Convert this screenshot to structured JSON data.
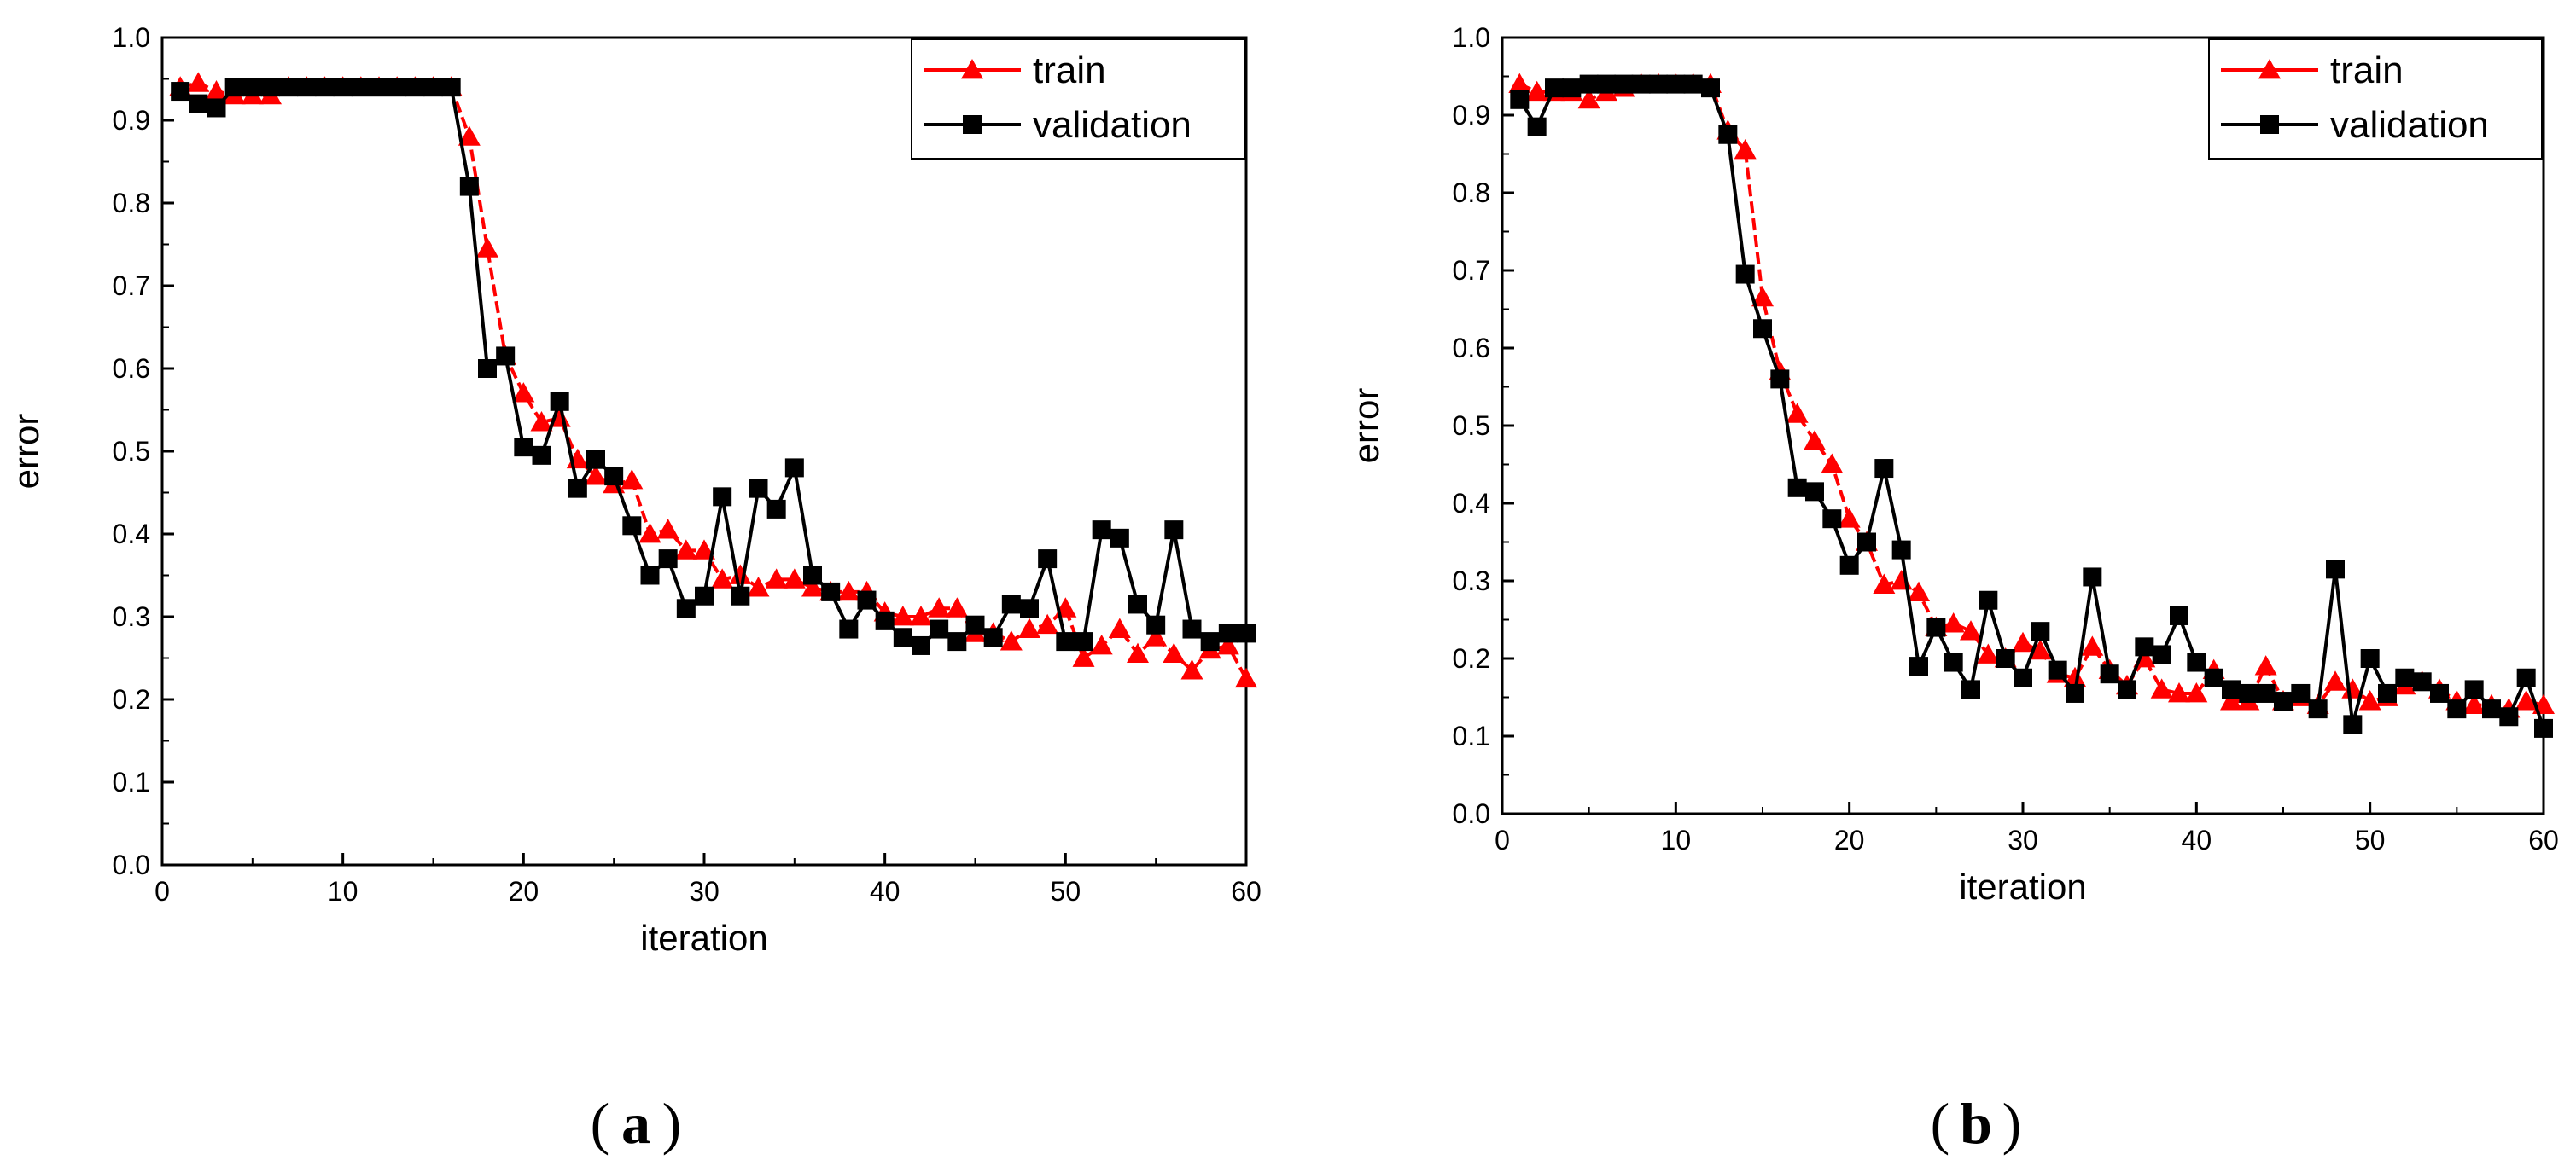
{
  "chart_data": [
    {
      "type": "line",
      "panel_label": "a",
      "xlabel": "iteration",
      "ylabel": "error",
      "xlim": [
        0,
        60
      ],
      "ylim": [
        0.0,
        1.0
      ],
      "xticks": [
        "0",
        "10",
        "20",
        "30",
        "40",
        "50",
        "60"
      ],
      "yticks": [
        "0.0",
        "0.1",
        "0.2",
        "0.3",
        "0.4",
        "0.5",
        "0.6",
        "0.7",
        "0.8",
        "0.9",
        "1.0"
      ],
      "legend_position": "top-right",
      "series": [
        {
          "name": "train",
          "color": "#ff0000",
          "marker": "triangle",
          "x": [
            1,
            2,
            3,
            4,
            5,
            6,
            7,
            8,
            9,
            10,
            11,
            12,
            13,
            14,
            15,
            16,
            17,
            18,
            19,
            20,
            21,
            22,
            23,
            24,
            25,
            26,
            27,
            28,
            29,
            30,
            31,
            32,
            33,
            34,
            35,
            36,
            37,
            38,
            39,
            40,
            41,
            42,
            43,
            44,
            45,
            46,
            47,
            48,
            49,
            50,
            51,
            52,
            53,
            54,
            55,
            56,
            57,
            58,
            59,
            60
          ],
          "values": [
            0.94,
            0.945,
            0.935,
            0.93,
            0.93,
            0.93,
            0.94,
            0.94,
            0.94,
            0.94,
            0.94,
            0.94,
            0.94,
            0.94,
            0.94,
            0.94,
            0.88,
            0.745,
            0.615,
            0.57,
            0.535,
            0.54,
            0.49,
            0.47,
            0.46,
            0.465,
            0.4,
            0.405,
            0.38,
            0.38,
            0.345,
            0.35,
            0.335,
            0.345,
            0.345,
            0.335,
            0.33,
            0.33,
            0.33,
            0.305,
            0.3,
            0.3,
            0.31,
            0.31,
            0.28,
            0.28,
            0.27,
            0.285,
            0.29,
            0.31,
            0.25,
            0.265,
            0.285,
            0.255,
            0.275,
            0.255,
            0.235,
            0.26,
            0.265,
            0.225
          ]
        },
        {
          "name": "validation",
          "color": "#000000",
          "marker": "square",
          "x": [
            1,
            2,
            3,
            4,
            5,
            6,
            7,
            8,
            9,
            10,
            11,
            12,
            13,
            14,
            15,
            16,
            17,
            18,
            19,
            20,
            21,
            22,
            23,
            24,
            25,
            26,
            27,
            28,
            29,
            30,
            31,
            32,
            33,
            34,
            35,
            36,
            37,
            38,
            39,
            40,
            41,
            42,
            43,
            44,
            45,
            46,
            47,
            48,
            49,
            50,
            51,
            52,
            53,
            54,
            55,
            56,
            57,
            58,
            59,
            60
          ],
          "values": [
            0.935,
            0.92,
            0.915,
            0.94,
            0.94,
            0.94,
            0.94,
            0.94,
            0.94,
            0.94,
            0.94,
            0.94,
            0.94,
            0.94,
            0.94,
            0.94,
            0.82,
            0.6,
            0.615,
            0.505,
            0.495,
            0.56,
            0.455,
            0.49,
            0.47,
            0.41,
            0.35,
            0.37,
            0.31,
            0.325,
            0.445,
            0.325,
            0.455,
            0.43,
            0.48,
            0.35,
            0.33,
            0.285,
            0.32,
            0.295,
            0.275,
            0.265,
            0.285,
            0.27,
            0.29,
            0.275,
            0.315,
            0.31,
            0.37,
            0.27,
            0.27,
            0.405,
            0.395,
            0.315,
            0.29,
            0.405,
            0.285,
            0.27,
            0.28,
            0.28
          ]
        }
      ]
    },
    {
      "type": "line",
      "panel_label": "b",
      "xlabel": "iteration",
      "ylabel": "error",
      "xlim": [
        0,
        60
      ],
      "ylim": [
        0.0,
        1.0
      ],
      "xticks": [
        "0",
        "10",
        "20",
        "30",
        "40",
        "50",
        "60"
      ],
      "yticks": [
        "0.0",
        "0.1",
        "0.2",
        "0.3",
        "0.4",
        "0.5",
        "0.6",
        "0.7",
        "0.8",
        "0.9",
        "1.0"
      ],
      "legend_position": "top-right",
      "series": [
        {
          "name": "train",
          "color": "#ff0000",
          "marker": "triangle",
          "x": [
            1,
            2,
            3,
            4,
            5,
            6,
            7,
            8,
            9,
            10,
            11,
            12,
            13,
            14,
            15,
            16,
            17,
            18,
            19,
            20,
            21,
            22,
            23,
            24,
            25,
            26,
            27,
            28,
            29,
            30,
            31,
            32,
            33,
            34,
            35,
            36,
            37,
            38,
            39,
            40,
            41,
            42,
            43,
            44,
            45,
            46,
            47,
            48,
            49,
            50,
            51,
            52,
            53,
            54,
            55,
            56,
            57,
            58,
            59,
            60
          ],
          "values": [
            0.94,
            0.93,
            0.93,
            0.93,
            0.92,
            0.93,
            0.935,
            0.94,
            0.94,
            0.94,
            0.94,
            0.94,
            0.88,
            0.855,
            0.665,
            0.57,
            0.515,
            0.48,
            0.45,
            0.38,
            0.35,
            0.295,
            0.3,
            0.285,
            0.24,
            0.245,
            0.235,
            0.205,
            0.2,
            0.22,
            0.21,
            0.18,
            0.175,
            0.215,
            0.185,
            0.165,
            0.2,
            0.16,
            0.155,
            0.155,
            0.185,
            0.145,
            0.145,
            0.19,
            0.145,
            0.15,
            0.14,
            0.17,
            0.16,
            0.145,
            0.15,
            0.165,
            0.17,
            0.16,
            0.145,
            0.14,
            0.14,
            0.135,
            0.145,
            0.14
          ]
        },
        {
          "name": "validation",
          "color": "#000000",
          "marker": "square",
          "x": [
            1,
            2,
            3,
            4,
            5,
            6,
            7,
            8,
            9,
            10,
            11,
            12,
            13,
            14,
            15,
            16,
            17,
            18,
            19,
            20,
            21,
            22,
            23,
            24,
            25,
            26,
            27,
            28,
            29,
            30,
            31,
            32,
            33,
            34,
            35,
            36,
            37,
            38,
            39,
            40,
            41,
            42,
            43,
            44,
            45,
            46,
            47,
            48,
            49,
            50,
            51,
            52,
            53,
            54,
            55,
            56,
            57,
            58,
            59,
            60
          ],
          "values": [
            0.92,
            0.885,
            0.935,
            0.935,
            0.94,
            0.94,
            0.94,
            0.94,
            0.94,
            0.94,
            0.94,
            0.935,
            0.875,
            0.695,
            0.625,
            0.56,
            0.42,
            0.415,
            0.38,
            0.32,
            0.35,
            0.445,
            0.34,
            0.19,
            0.24,
            0.195,
            0.16,
            0.275,
            0.2,
            0.175,
            0.235,
            0.185,
            0.155,
            0.305,
            0.18,
            0.16,
            0.215,
            0.205,
            0.255,
            0.195,
            0.175,
            0.16,
            0.155,
            0.155,
            0.145,
            0.155,
            0.135,
            0.315,
            0.115,
            0.2,
            0.155,
            0.175,
            0.17,
            0.155,
            0.135,
            0.16,
            0.135,
            0.125,
            0.175,
            0.11
          ]
        }
      ]
    }
  ]
}
